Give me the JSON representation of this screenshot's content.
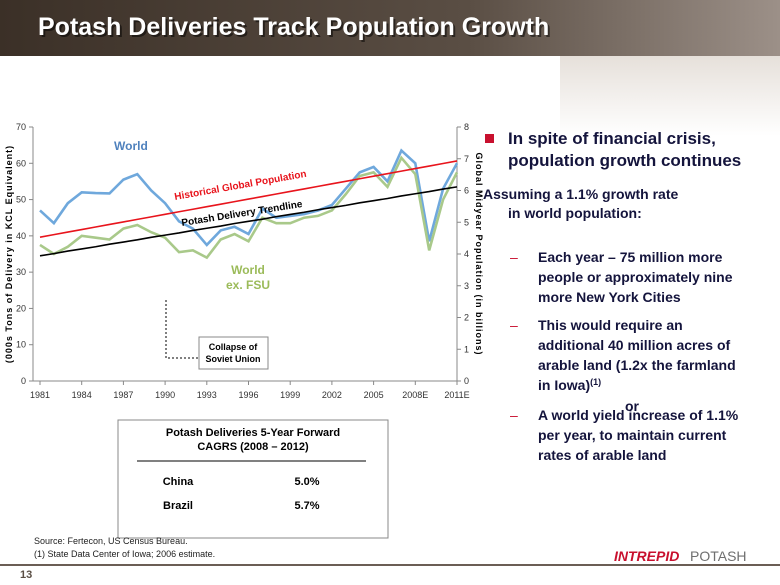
{
  "slide": {
    "title": "Potash Deliveries Track Population Growth",
    "page_number": "13",
    "logo": {
      "first": "INTREPID",
      "second": "POTASH"
    },
    "sources": [
      "Source:  Fertecon, US Census Bureau.",
      "(1) State Data Center of Iowa; 2006 estimate."
    ]
  },
  "chart_data": {
    "type": "line",
    "categories": [
      "1981",
      null,
      null,
      "1984",
      null,
      null,
      "1987",
      null,
      null,
      "1990",
      null,
      null,
      "1993",
      null,
      null,
      "1996",
      null,
      null,
      "1999",
      null,
      null,
      "2002",
      null,
      null,
      "2005",
      null,
      null,
      "2008E",
      null,
      null,
      "2011E"
    ],
    "ylabel": "(000s Tons of Delivery in KCL Equivalent)",
    "y2label": "Global Midyear Population (in billions)",
    "ylim": [
      0,
      70
    ],
    "yticks": [
      0,
      10,
      20,
      30,
      40,
      50,
      60,
      70
    ],
    "y2lim": [
      0,
      8
    ],
    "y2ticks": [
      0,
      1,
      2,
      3,
      4,
      5,
      6,
      7,
      8
    ],
    "series": [
      {
        "name": "World",
        "color": "#6fa8dc",
        "values": [
          47,
          43.5,
          49,
          52,
          51.8,
          51.7,
          55.5,
          57,
          52.5,
          49,
          44,
          42,
          37.5,
          41.5,
          42.5,
          40.5,
          47.5,
          45,
          45.5,
          46,
          47,
          48.5,
          53,
          57.5,
          59,
          55,
          63.5,
          60,
          38.5,
          53,
          60
        ]
      },
      {
        "name": "World ex. FSU",
        "color": "#a9c98a",
        "values": [
          37.5,
          35,
          37,
          40,
          39.5,
          39,
          42,
          43,
          41,
          39.5,
          35.5,
          36,
          34,
          39,
          40.5,
          38.5,
          45,
          43.5,
          43.5,
          45,
          45.5,
          47,
          51.5,
          56.5,
          57.5,
          53.5,
          61.5,
          57,
          36,
          50,
          57.5
        ]
      },
      {
        "name": "Historical Global Population",
        "color": "#e8141c",
        "axis": "y2",
        "values": [
          4.53,
          4.61,
          4.69,
          4.77,
          4.85,
          4.93,
          5.01,
          5.09,
          5.17,
          5.25,
          5.33,
          5.41,
          5.49,
          5.57,
          5.65,
          5.73,
          5.81,
          5.89,
          5.97,
          6.05,
          6.13,
          6.21,
          6.29,
          6.37,
          6.45,
          6.53,
          6.61,
          6.69,
          6.77,
          6.85,
          6.93
        ]
      },
      {
        "name": "Potash Delivery Trendline",
        "color": "#000000",
        "values": [
          34.5,
          35.1,
          35.8,
          36.4,
          37.0,
          37.7,
          38.3,
          38.9,
          39.6,
          40.2,
          40.8,
          41.5,
          42.1,
          42.7,
          43.4,
          44.0,
          44.6,
          45.3,
          45.9,
          46.5,
          47.2,
          47.8,
          48.4,
          49.1,
          49.7,
          50.3,
          51.0,
          51.6,
          52.2,
          52.9,
          53.5
        ]
      }
    ],
    "annotation": [
      "Collapse of",
      "Soviet Union"
    ]
  },
  "table": {
    "title": [
      "Potash Deliveries  5-Year Forward",
      "CAGRS (2008 – 2012)"
    ],
    "rows": [
      [
        "China",
        "5.0%"
      ],
      [
        "Brazil",
        "5.7%"
      ]
    ]
  },
  "bullets": {
    "main": [
      "In spite of financial crisis,",
      "population growth continues"
    ],
    "sub": [
      "Assuming a 1.1% growth rate",
      "in world population:"
    ],
    "points": [
      [
        "Each year – 75 million more",
        "people or approximately nine",
        "more New York Cities"
      ],
      [
        "This would require an",
        "additional 40 million acres of",
        "arable land (1.2x the farmland",
        "in Iowa)"
      ],
      [
        "A world yield increase of 1.1%",
        "per year, to maintain current",
        "rates of arable land"
      ]
    ],
    "footnote_mark": "(1)",
    "or": "or"
  }
}
